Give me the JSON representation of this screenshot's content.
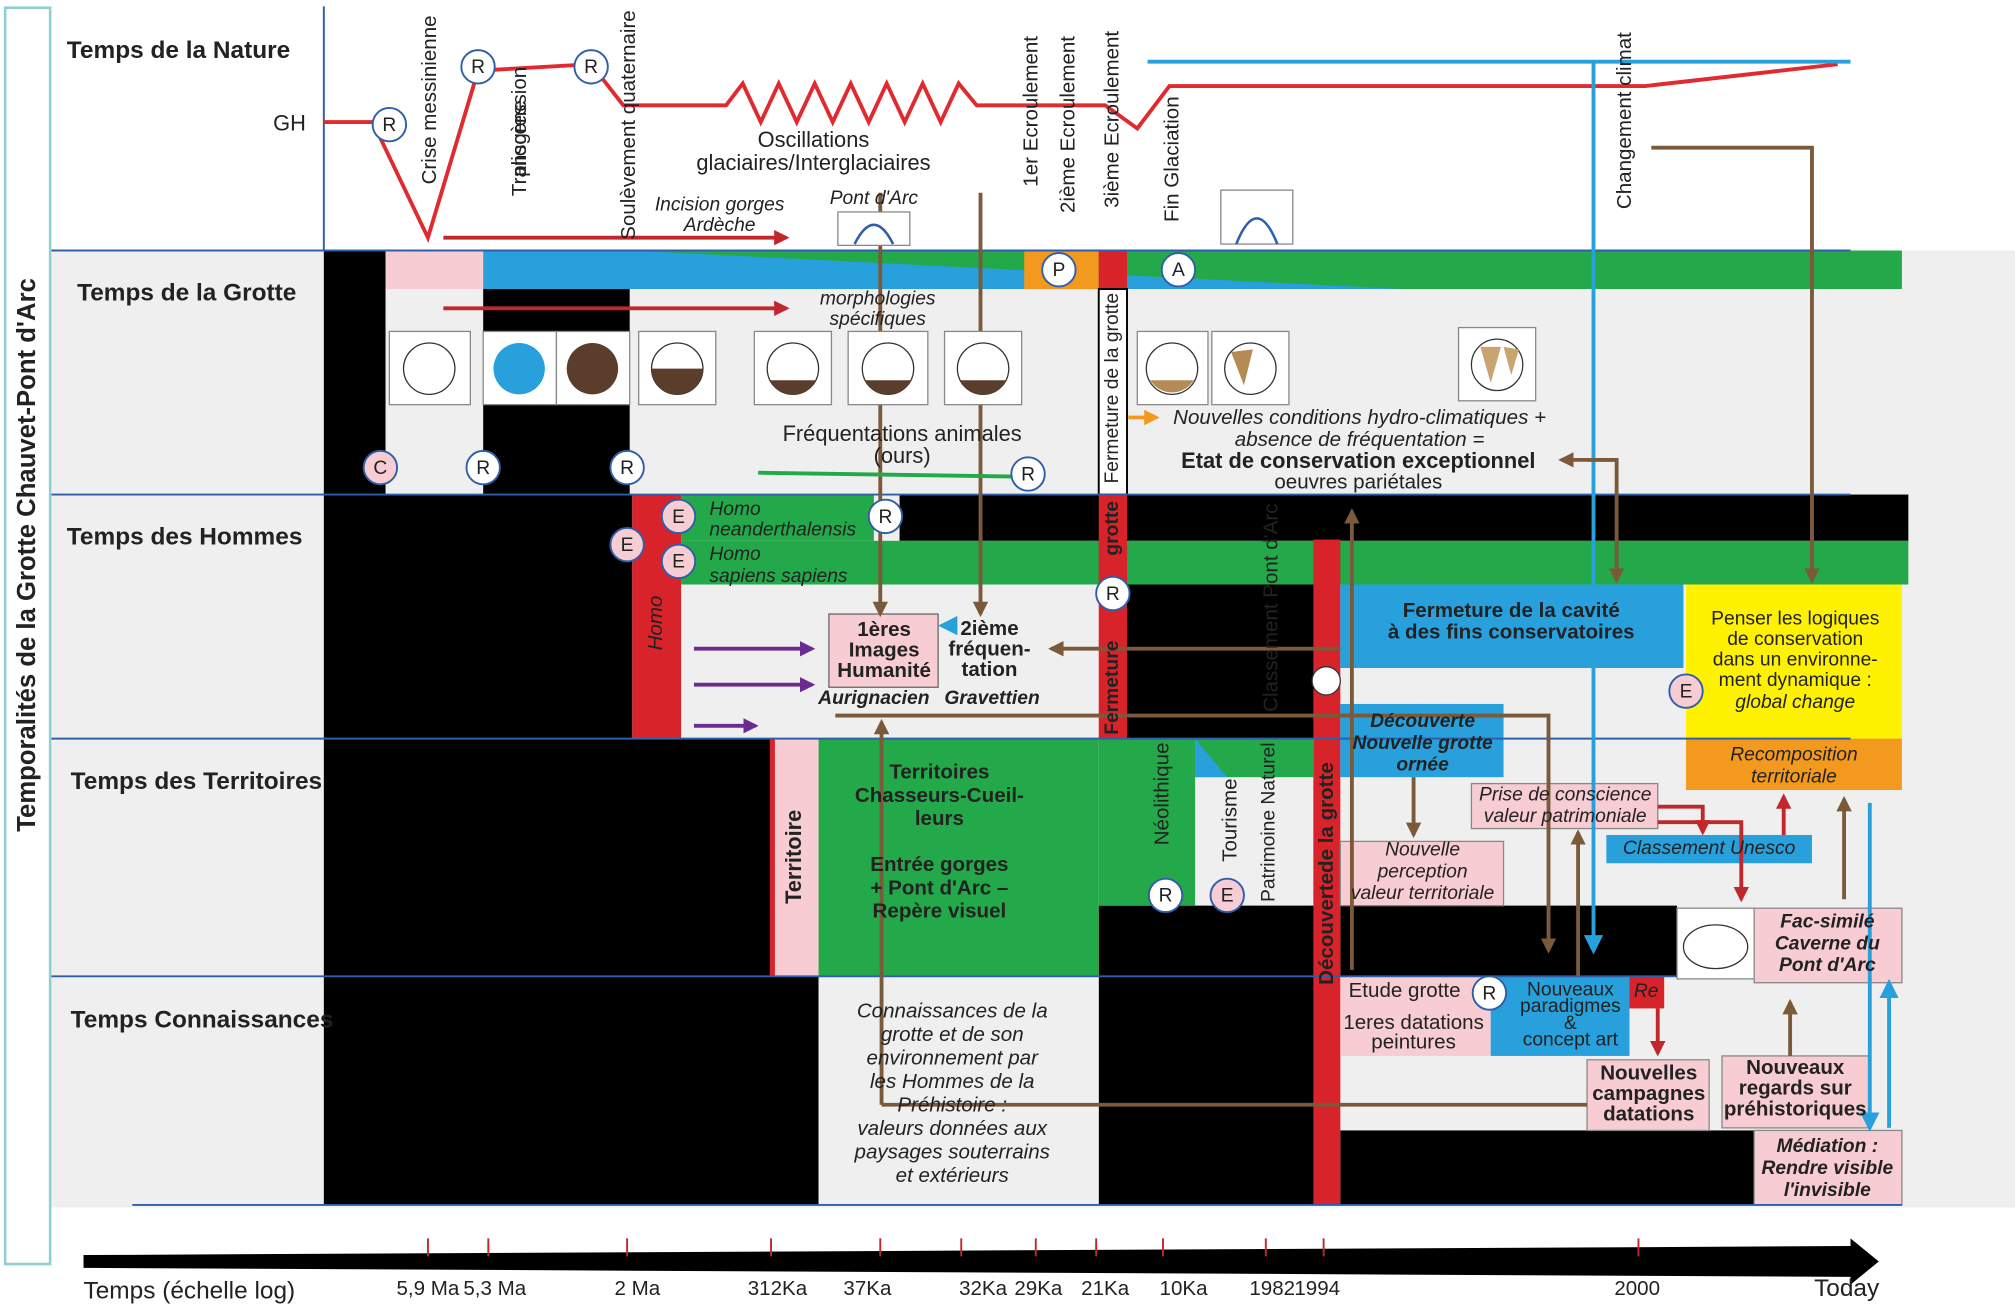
{
  "title": "Temporalités de la Grotte Chauvet-Pont d'Arc",
  "rows": [
    "Temps de la Nature",
    "Temps de la Grotte",
    "Temps des Hommes",
    "Temps des Territoires",
    "Temps Connaissances"
  ],
  "axis": {
    "label": "Temps (échelle log)",
    "ticks": [
      "5,9 Ma",
      "5,3 Ma",
      "2 Ma",
      "312Ka",
      "37Ka",
      "32Ka",
      "29Ka",
      "21Ka",
      "10Ka",
      "1982",
      "1994",
      "2000",
      "Today"
    ]
  },
  "nature": {
    "gh": "GH",
    "crise": "Crise messinienne",
    "transgression": [
      "Transgression",
      "pliocène"
    ],
    "soulevement": "Soulèvement quaternaire",
    "ecroulement_1": "1er Ecroulement",
    "ecroulement_2": "2ième Ecroulement",
    "ecroulement_3": "3ième Ecroulement",
    "fin_glaciation": "Fin Glaciation",
    "changement": "Changement climat",
    "oscillations": [
      "Oscillations",
      "glaciaires/Interglaciaires"
    ],
    "incision": [
      "Incision gorges",
      "Ardèche"
    ],
    "pont_arc": "Pont d'Arc"
  },
  "grotte": {
    "morphologies": [
      "morphologies",
      "spécifiques"
    ],
    "frequentations": [
      "Fréquentations animales",
      "(ours)"
    ],
    "fermeture": "Fermeture de la grotte",
    "conditions": [
      "Nouvelles conditions hydro-climatiques +",
      "absence de fréquentation ="
    ],
    "etat": "Etat de conservation exceptionnel",
    "oeuvres": "oeuvres pariétales"
  },
  "hommes": {
    "neanderthal": [
      "Homo",
      "neanderthalensis"
    ],
    "sapiens": [
      "Homo",
      "sapiens sapiens"
    ],
    "homo": "Homo",
    "fermeture_haut": "grotte",
    "fermeture_bas": "Fermeture",
    "images": [
      "1ères",
      "Images",
      "Humanité"
    ],
    "frequentation": [
      "2ième",
      "fréquen-",
      "tation"
    ],
    "aurignacien": "Aurignacien",
    "gravettien": "Gravettien",
    "classement": "Classement Pont d'Arc",
    "decouverte": "Découvertede la grotte",
    "fermeture_cavite": [
      "Fermeture de la cavité",
      "à des fins conservatoires"
    ],
    "penser": [
      "Penser les logiques",
      "de conservation",
      "dans un environne-",
      "ment dynamique :"
    ],
    "global": "global change",
    "nouvelle_grotte": [
      "Découverte",
      "Nouvelle grotte",
      "ornée"
    ]
  },
  "territoires": {
    "territoire": "Territoire",
    "chasseurs": [
      "Territoires",
      "Chasseurs-Cueil-",
      "leurs"
    ],
    "gorges": [
      "Entrée gorges",
      "+ Pont d'Arc –",
      "Repère visuel"
    ],
    "neolithique": "Néolithique",
    "tourisme": "Tourisme",
    "patrimoine": "Patrimoine Naturel",
    "recomposition": [
      "Recomposition",
      "territoriale"
    ],
    "prise": [
      "Prise de conscience",
      "valeur patrimoniale"
    ],
    "perception": [
      "Nouvelle",
      "perception",
      "valeur territoriale"
    ],
    "unesco": "Classement Unesco",
    "facsimile": [
      "Fac-similé",
      "Caverne du",
      "Pont d'Arc"
    ]
  },
  "connaissances": {
    "prehistoire": [
      "Connaissances de la",
      "grotte et de son",
      "environnement par",
      "les Hommes de la",
      "Préhistoire :",
      "valeurs données aux",
      "paysages souterrains",
      "et extérieurs"
    ],
    "etude": "Etude grotte",
    "datations": [
      "1eres datations",
      "peintures"
    ],
    "paradigmes": [
      "Nouveaux",
      "paradigmes",
      "&",
      "concept art"
    ],
    "re": "Re",
    "campagnes": [
      "Nouvelles",
      "campagnes",
      "datations"
    ],
    "regards": [
      "Nouveaux",
      "regards sur",
      "préhistoriques"
    ],
    "mediation": [
      "Médiation :",
      "Rendre visible",
      "l'invisible"
    ]
  },
  "markers": [
    "R",
    "R",
    "R",
    "P",
    "A",
    "C",
    "R",
    "R",
    "R",
    "E",
    "R",
    "E",
    "E",
    "R",
    "E",
    "R",
    "E",
    "R"
  ]
}
